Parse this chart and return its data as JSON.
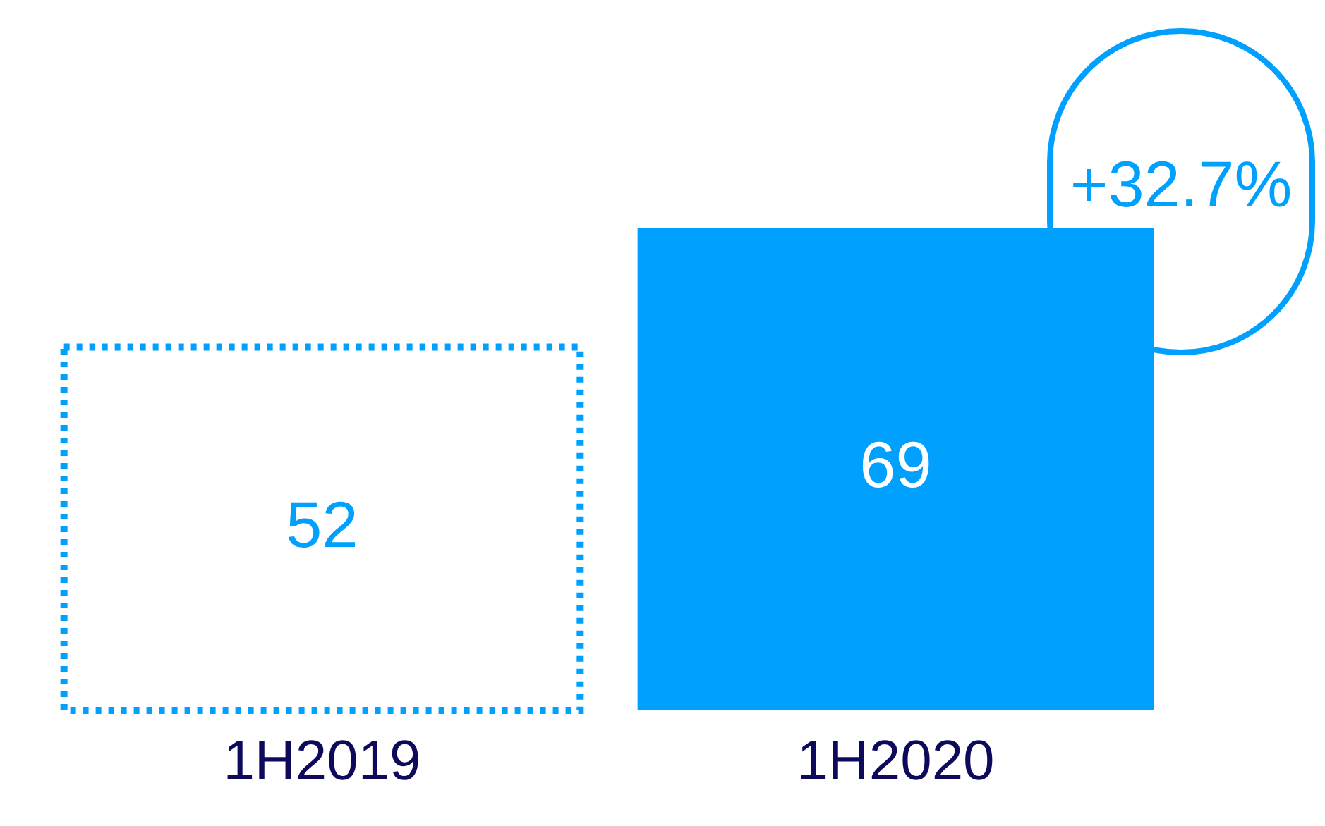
{
  "chart_data": {
    "type": "bar",
    "categories": [
      "1H2019",
      "1H2020"
    ],
    "series": [
      {
        "color": "#00a0ff",
        "values": [
          52,
          null
        ],
        "line_style": "dotted"
      },
      {
        "color": "#00a0ff",
        "values": [
          null,
          69
        ]
      }
    ],
    "tick_labels": "x",
    "grid": false,
    "legend": false,
    "data_labels": true,
    "annotations": [
      "+32.7%"
    ]
  }
}
